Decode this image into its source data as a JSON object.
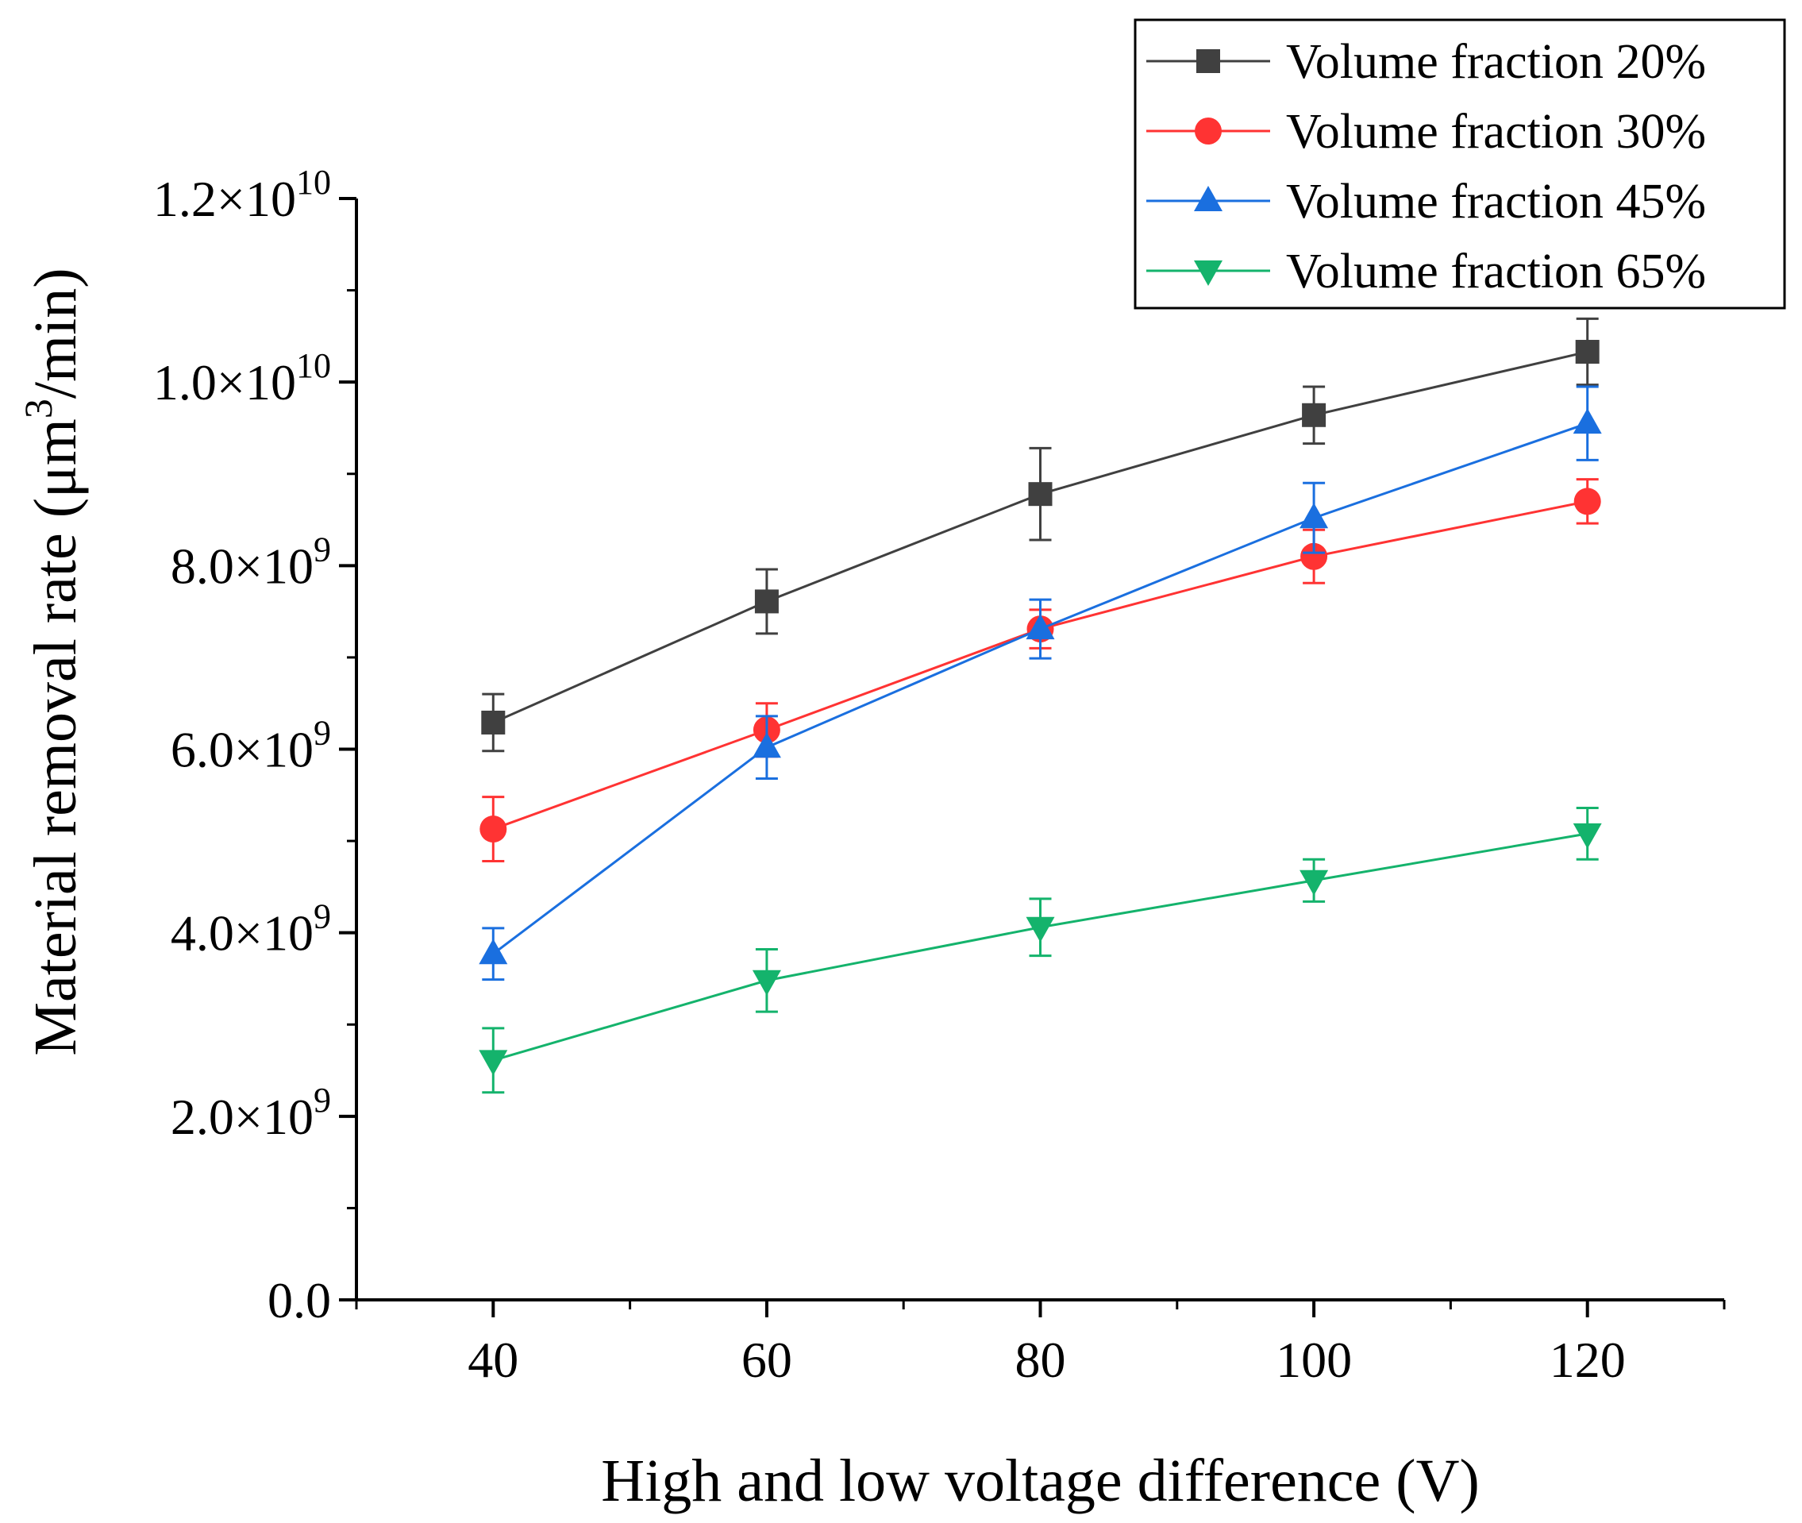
{
  "chart_data": {
    "type": "line",
    "title": "",
    "xlabel": "High and low voltage difference (V)",
    "ylabel": "Material removal rate (μm³/min)",
    "ylabel_parts": {
      "before": "Material removal rate (μm",
      "sup": "3",
      "after": "/min)"
    },
    "x": [
      40,
      60,
      80,
      100,
      120
    ],
    "xlim": [
      30,
      130
    ],
    "ylim": [
      0,
      12000000000
    ],
    "x_ticks": [
      40,
      60,
      80,
      100,
      120
    ],
    "x_tick_labels": [
      "40",
      "60",
      "80",
      "100",
      "120"
    ],
    "y_ticks": [
      {
        "value": 0,
        "mantissa": "0.0",
        "times": "",
        "exp": ""
      },
      {
        "value": 2000000000,
        "mantissa": "2.0",
        "times": "×10",
        "exp": "9"
      },
      {
        "value": 4000000000,
        "mantissa": "4.0",
        "times": "×10",
        "exp": "9"
      },
      {
        "value": 6000000000,
        "mantissa": "6.0",
        "times": "×10",
        "exp": "9"
      },
      {
        "value": 8000000000,
        "mantissa": "8.0",
        "times": "×10",
        "exp": "9"
      },
      {
        "value": 10000000000,
        "mantissa": "1.0",
        "times": "×10",
        "exp": "10"
      },
      {
        "value": 12000000000,
        "mantissa": "1.2",
        "times": "×10",
        "exp": "10"
      }
    ],
    "legend_position": "top-right",
    "grid": false,
    "series": [
      {
        "name": "Volume fraction 20%",
        "color": "#404040",
        "marker": "square",
        "values": [
          6290000000,
          7610000000,
          8780000000,
          9640000000,
          10330000000
        ],
        "errors": [
          310000000,
          350000000,
          500000000,
          310000000,
          360000000
        ]
      },
      {
        "name": "Volume fraction 30%",
        "color": "#ff3333",
        "marker": "circle",
        "values": [
          5130000000,
          6210000000,
          7310000000,
          8100000000,
          8700000000
        ],
        "errors": [
          350000000,
          290000000,
          210000000,
          290000000,
          240000000
        ]
      },
      {
        "name": "Volume fraction 45%",
        "color": "#1a6fdf",
        "marker": "triangle-up",
        "values": [
          3770000000,
          6020000000,
          7310000000,
          8520000000,
          9550000000
        ],
        "errors": [
          280000000,
          340000000,
          320000000,
          380000000,
          400000000
        ]
      },
      {
        "name": "Volume fraction 65%",
        "color": "#14b36c",
        "marker": "triangle-down",
        "values": [
          2610000000,
          3480000000,
          4060000000,
          4570000000,
          5080000000
        ],
        "errors": [
          350000000,
          340000000,
          310000000,
          230000000,
          280000000
        ]
      }
    ]
  }
}
